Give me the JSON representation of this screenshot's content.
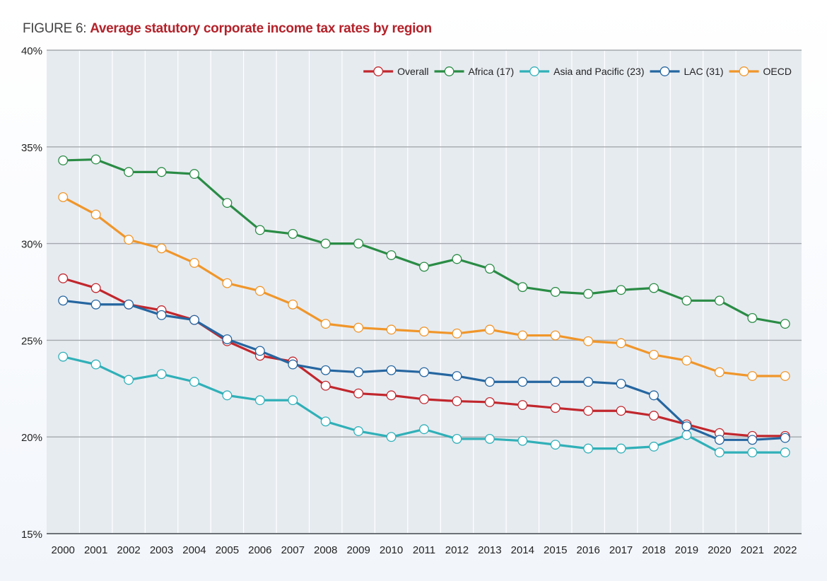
{
  "figure": {
    "prefix": "FIGURE 6: ",
    "title": "Average statutory corporate income tax rates by region"
  },
  "chart_data": {
    "type": "line",
    "title": "Average statutory corporate income tax rates by region",
    "xlabel": "",
    "ylabel": "",
    "x": [
      "2000",
      "2001",
      "2002",
      "2003",
      "2004",
      "2005",
      "2006",
      "2007",
      "2008",
      "2009",
      "2010",
      "2011",
      "2012",
      "2013",
      "2014",
      "2015",
      "2016",
      "2017",
      "2018",
      "2019",
      "2020",
      "2021",
      "2022"
    ],
    "ylim": [
      15,
      40
    ],
    "yticks": [
      15,
      20,
      25,
      30,
      35,
      40
    ],
    "ytick_labels": [
      "15%",
      "20%",
      "25%",
      "30%",
      "35%",
      "40%"
    ],
    "grid": true,
    "legend_position": "top-right",
    "series": [
      {
        "name": "Overall",
        "color": "#c1272d",
        "values": [
          28.2,
          27.7,
          26.85,
          26.55,
          26.05,
          24.95,
          24.2,
          23.9,
          22.65,
          22.25,
          22.15,
          21.95,
          21.85,
          21.8,
          21.65,
          21.5,
          21.35,
          21.35,
          21.1,
          20.65,
          20.2,
          20.05,
          20.05
        ]
      },
      {
        "name": "Africa (17)",
        "color": "#2a8c45",
        "values": [
          34.3,
          34.35,
          33.7,
          33.7,
          33.6,
          32.1,
          30.7,
          30.5,
          30.0,
          30.0,
          29.4,
          28.8,
          29.2,
          28.7,
          27.75,
          27.5,
          27.4,
          27.6,
          27.7,
          27.05,
          27.05,
          26.15,
          25.85
        ]
      },
      {
        "name": "Asia and Pacific (23)",
        "color": "#30b0b8",
        "values": [
          24.15,
          23.75,
          22.95,
          23.25,
          22.85,
          22.15,
          21.9,
          21.9,
          20.8,
          20.3,
          20.0,
          20.4,
          19.9,
          19.9,
          19.8,
          19.6,
          19.4,
          19.4,
          19.5,
          20.1,
          19.2,
          19.2,
          19.2
        ]
      },
      {
        "name": "LAC (31)",
        "color": "#2566a0",
        "values": [
          27.05,
          26.85,
          26.85,
          26.3,
          26.05,
          25.05,
          24.45,
          23.75,
          23.45,
          23.35,
          23.45,
          23.35,
          23.15,
          22.85,
          22.85,
          22.85,
          22.85,
          22.75,
          22.15,
          20.55,
          19.85,
          19.85,
          19.95
        ]
      },
      {
        "name": "OECD",
        "color": "#f0962a",
        "values": [
          32.4,
          31.5,
          30.2,
          29.75,
          29.0,
          27.95,
          27.55,
          26.85,
          25.85,
          25.65,
          25.55,
          25.45,
          25.35,
          25.55,
          25.25,
          25.25,
          24.95,
          24.85,
          24.25,
          23.95,
          23.35,
          23.15,
          23.15
        ]
      }
    ]
  }
}
